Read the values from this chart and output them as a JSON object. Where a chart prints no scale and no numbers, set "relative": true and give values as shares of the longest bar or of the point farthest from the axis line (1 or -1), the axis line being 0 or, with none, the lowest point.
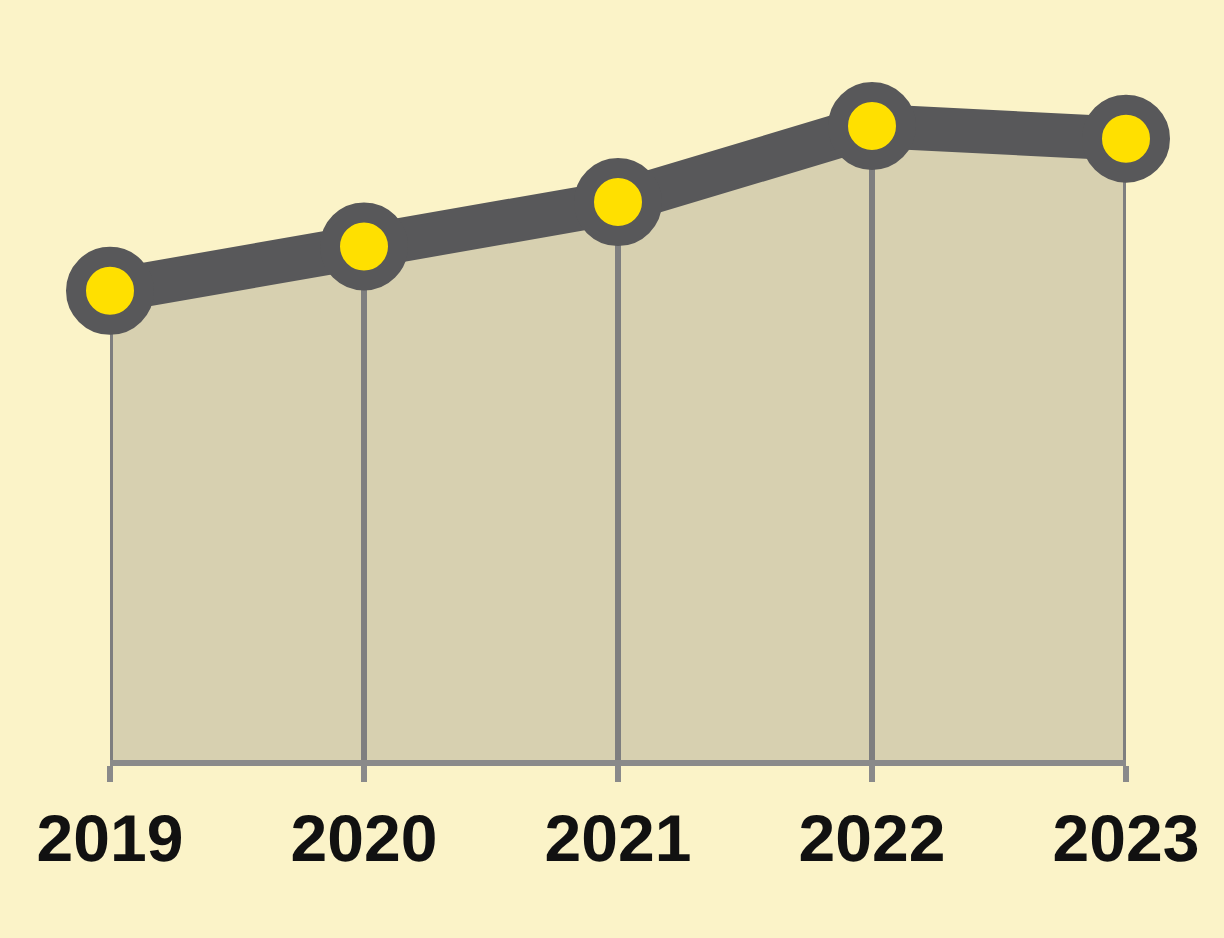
{
  "chart_data": {
    "type": "area",
    "relative": true,
    "categories": [
      "2019",
      "2020",
      "2021",
      "2022",
      "2023"
    ],
    "series": [
      {
        "color": "#58585a",
        "values": [
          0.74,
          0.81,
          0.88,
          1,
          0.98
        ]
      }
    ],
    "marker": "circle",
    "line_style": "solid",
    "grid": "x"
  }
}
